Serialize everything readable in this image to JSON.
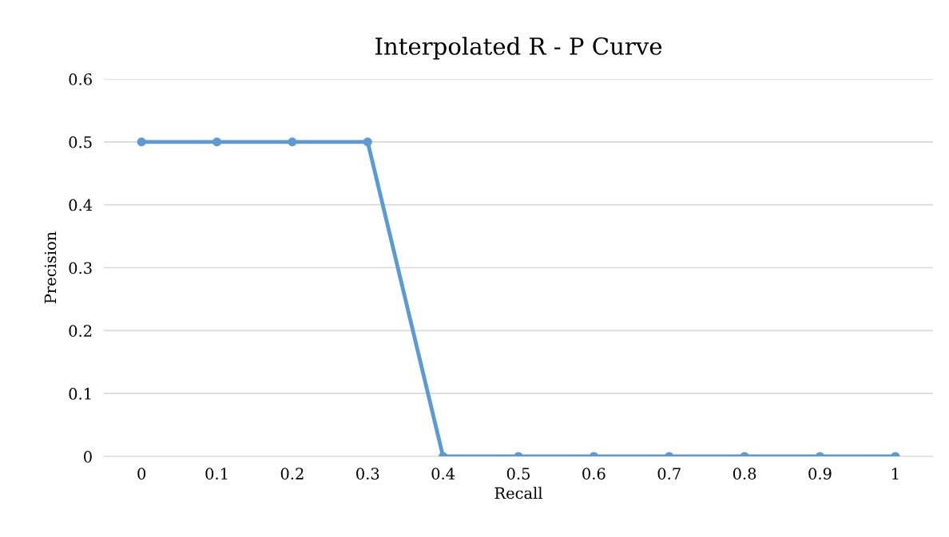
{
  "chart_data": {
    "type": "line",
    "title": "Interpolated R - P Curve",
    "xlabel": "Recall",
    "ylabel": "Precision",
    "categories": [
      "0",
      "0.1",
      "0.2",
      "0.3",
      "0.4",
      "0.5",
      "0.6",
      "0.7",
      "0.8",
      "0.9",
      "1"
    ],
    "series": [
      {
        "color": "#5b9bd5",
        "values": [
          0.5,
          0.5,
          0.5,
          0.5,
          0,
          0,
          0,
          0,
          0,
          0,
          0
        ]
      }
    ],
    "ylim": [
      0,
      0.6
    ],
    "yticks": [
      0,
      0.1,
      0.2,
      0.3,
      0.4,
      0.5,
      0.6
    ],
    "grid": "y",
    "marker": "circle",
    "line_style": "solid"
  }
}
